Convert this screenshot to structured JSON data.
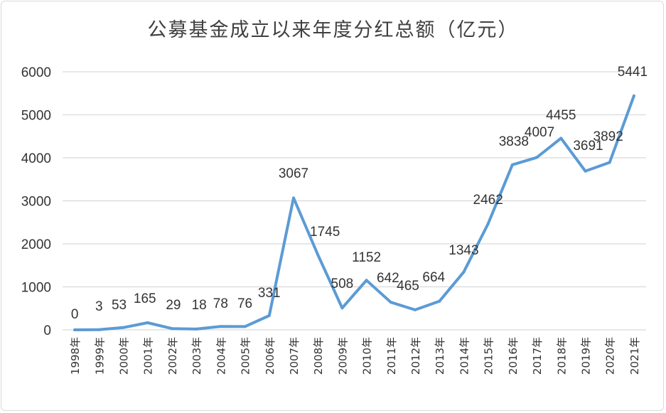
{
  "chart_data": {
    "type": "line",
    "title": "公募基金成立以来年度分红总额（亿元）",
    "xlabel": "",
    "ylabel": "",
    "ylim": [
      0,
      6000
    ],
    "yticks": [
      0,
      1000,
      2000,
      3000,
      4000,
      5000,
      6000
    ],
    "grid": true,
    "legend": "none",
    "categories": [
      "1998年",
      "1999年",
      "2000年",
      "2001年",
      "2002年",
      "2003年",
      "2004年",
      "2005年",
      "2006年",
      "2007年",
      "2008年",
      "2009年",
      "2010年",
      "2011年",
      "2012年",
      "2013年",
      "2014年",
      "2015年",
      "2016年",
      "2017年",
      "2018年",
      "2019年",
      "2020年",
      "2021年"
    ],
    "series": [
      {
        "values": [
          0,
          3,
          53,
          165,
          29,
          18,
          78,
          76,
          331,
          3067,
          1745,
          508,
          1152,
          642,
          465,
          664,
          1343,
          2462,
          3838,
          4007,
          4455,
          3691,
          3892,
          5441
        ]
      }
    ],
    "colors": {
      "line": "#5b9bd5",
      "grid": "#d9d9d9",
      "text": "#333333"
    }
  }
}
